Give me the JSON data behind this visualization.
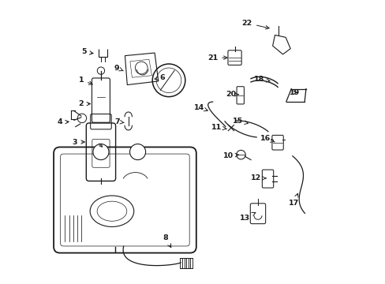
{
  "bg_color": "#ffffff",
  "line_color": "#1a1a1a",
  "parts_info": [
    [
      1,
      0.105,
      0.72,
      0.155,
      0.7
    ],
    [
      2,
      0.105,
      0.635,
      0.148,
      0.635
    ],
    [
      3,
      0.083,
      0.5,
      0.128,
      0.5
    ],
    [
      4,
      0.03,
      0.57,
      0.072,
      0.572
    ],
    [
      5,
      0.115,
      0.818,
      0.158,
      0.812
    ],
    [
      6,
      0.392,
      0.728,
      0.362,
      0.722
    ],
    [
      7,
      0.232,
      0.572,
      0.258,
      0.568
    ],
    [
      8,
      0.403,
      0.162,
      0.428,
      0.118
    ],
    [
      9,
      0.23,
      0.762,
      0.262,
      0.748
    ],
    [
      10,
      0.625,
      0.452,
      0.665,
      0.455
    ],
    [
      11,
      0.585,
      0.552,
      0.628,
      0.545
    ],
    [
      12,
      0.724,
      0.372,
      0.76,
      0.372
    ],
    [
      13,
      0.685,
      0.232,
      0.724,
      0.252
    ],
    [
      14,
      0.522,
      0.622,
      0.555,
      0.61
    ],
    [
      15,
      0.66,
      0.575,
      0.698,
      0.565
    ],
    [
      16,
      0.756,
      0.512,
      0.79,
      0.5
    ],
    [
      17,
      0.858,
      0.285,
      0.875,
      0.328
    ],
    [
      18,
      0.734,
      0.722,
      0.775,
      0.715
    ],
    [
      19,
      0.86,
      0.675,
      0.878,
      0.675
    ],
    [
      20,
      0.635,
      0.668,
      0.663,
      0.668
    ],
    [
      21,
      0.57,
      0.798,
      0.632,
      0.798
    ],
    [
      22,
      0.692,
      0.92,
      0.78,
      0.9
    ]
  ]
}
